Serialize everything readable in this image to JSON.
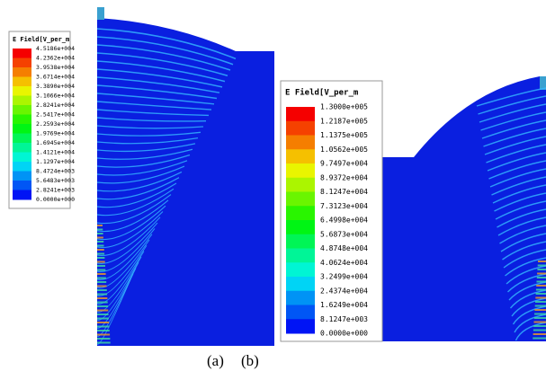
{
  "legend_a": {
    "title": "E Field[V_per_m",
    "labels": [
      "4.5186e+004",
      "4.2362e+004",
      "3.9538e+004",
      "3.6714e+004",
      "3.3890e+004",
      "3.1066e+004",
      "2.8241e+004",
      "2.5417e+004",
      "2.2593e+004",
      "1.9769e+004",
      "1.6945e+004",
      "1.4121e+004",
      "1.1297e+004",
      "8.4724e+003",
      "5.6483e+003",
      "2.8241e+003",
      "0.0000e+000"
    ]
  },
  "legend_b": {
    "title": "E Field[V_per_m",
    "labels": [
      "1.3000e+005",
      "1.2187e+005",
      "1.1375e+005",
      "1.0562e+005",
      "9.7497e+004",
      "8.9372e+004",
      "8.1247e+004",
      "7.3123e+004",
      "6.4998e+004",
      "5.6873e+004",
      "4.8748e+004",
      "4.0624e+004",
      "3.2499e+004",
      "2.4374e+004",
      "1.6249e+004",
      "8.1247e+003",
      "0.0000e+000"
    ]
  },
  "captions": [
    "(a)",
    "(b)"
  ]
}
